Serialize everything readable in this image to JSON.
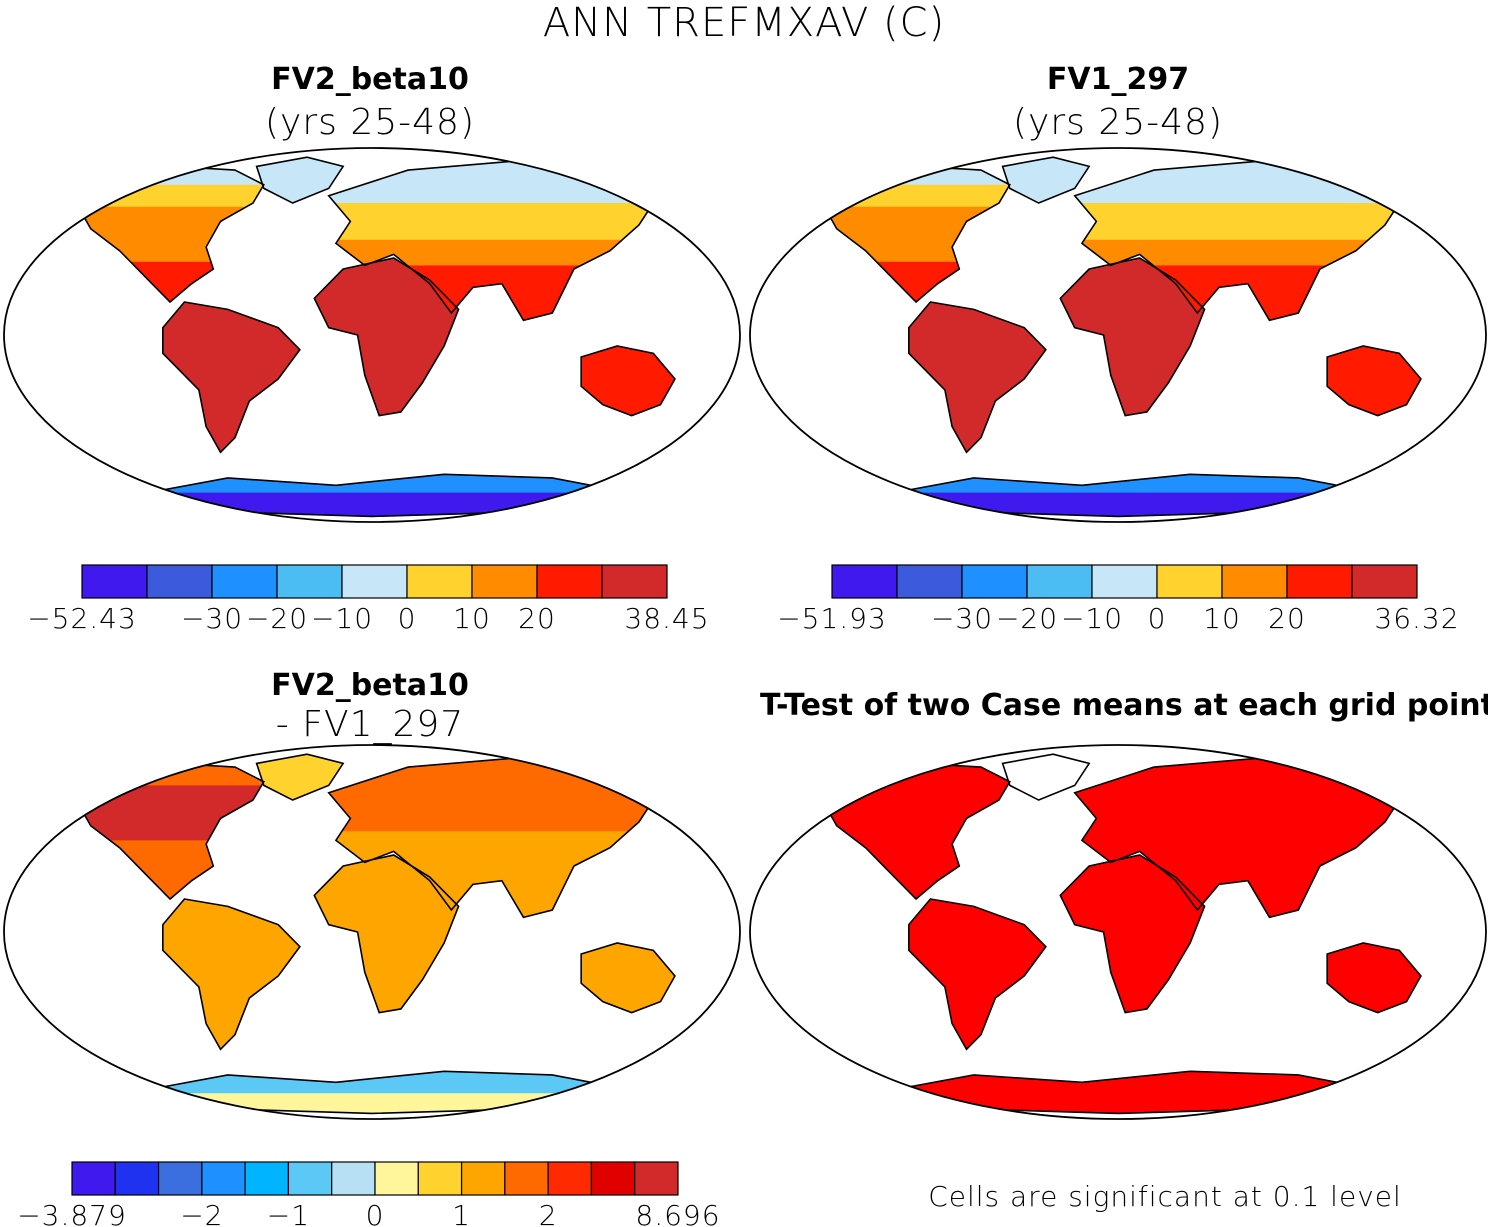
{
  "main_title": "ANN TREFMXAV (C)",
  "chart_data": [
    {
      "type": "heatmap",
      "panel": "top-left",
      "title": "FV2_beta10",
      "subtitle": "(yrs 25-48)",
      "projection": "robinson world map",
      "colorbar": {
        "min": "-52.43",
        "max": "38.45",
        "tick_labels": [
          "-30",
          "-20",
          "-10",
          "0",
          "10",
          "20"
        ],
        "colors": [
          "#3f19ee",
          "#3b5bdc",
          "#1e90ff",
          "#4cbdf2",
          "#c7e6f7",
          "#ffd22e",
          "#ff8c00",
          "#ff1a00",
          "#d22a2a"
        ],
        "bounds": [
          -52.43,
          -40,
          -30,
          -20,
          -10,
          0,
          10,
          20,
          30,
          38.45
        ]
      }
    },
    {
      "type": "heatmap",
      "panel": "top-right",
      "title": "FV1_297",
      "subtitle": "(yrs 25-48)",
      "projection": "robinson world map",
      "colorbar": {
        "min": "-51.93",
        "max": "36.32",
        "tick_labels": [
          "-30",
          "-20",
          "-10",
          "0",
          "10",
          "20"
        ],
        "colors": [
          "#3f19ee",
          "#3b5bdc",
          "#1e90ff",
          "#4cbdf2",
          "#c7e6f7",
          "#ffd22e",
          "#ff8c00",
          "#ff1a00",
          "#d22a2a"
        ],
        "bounds": [
          -51.93,
          -40,
          -30,
          -20,
          -10,
          0,
          10,
          20,
          30,
          36.32
        ]
      }
    },
    {
      "type": "heatmap",
      "panel": "bottom-left",
      "title": "FV2_beta10",
      "subtitle": "- FV1_297",
      "projection": "robinson world map",
      "colorbar": {
        "min": "-3.879",
        "max": "8.696",
        "tick_labels": [
          "-2",
          "-1",
          "0",
          "1",
          "2"
        ],
        "colors": [
          "#3f19ee",
          "#1e32f0",
          "#3b6fe0",
          "#1e90ff",
          "#00b4ff",
          "#5cc8f5",
          "#b8e0f5",
          "#fff59a",
          "#ffd22e",
          "#ffa500",
          "#ff6a00",
          "#ff2a00",
          "#e00000",
          "#d22a2a"
        ],
        "bounds": [
          -3.879,
          -3,
          -2.5,
          -2,
          -1.5,
          -1,
          -0.5,
          0,
          0.5,
          1,
          1.5,
          2,
          2.5,
          3,
          8.696
        ]
      }
    },
    {
      "type": "heatmap",
      "panel": "bottom-right",
      "title": "T-Test of two Case means at each grid point",
      "projection": "robinson world map",
      "significance_color": "#ff0000",
      "footnote": "Cells are significant at 0.1 level"
    }
  ]
}
